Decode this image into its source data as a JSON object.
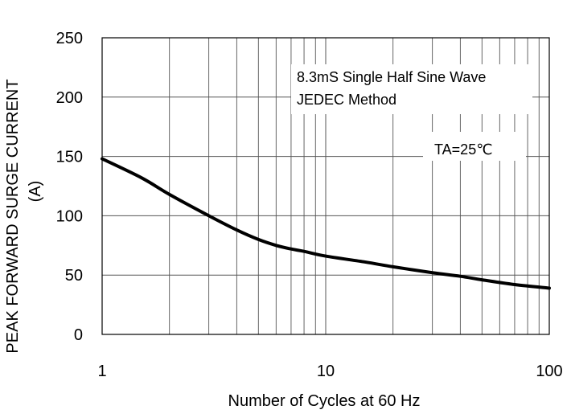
{
  "chart_data": {
    "type": "line",
    "xscale": "log",
    "xlim": [
      1,
      100
    ],
    "ylim": [
      0,
      250
    ],
    "xticks": [
      "1",
      "10",
      "100"
    ],
    "yticks": [
      "0",
      "50",
      "100",
      "150",
      "200",
      "250"
    ],
    "xlabel": "Number of Cycles at 60 Hz",
    "ylabel": [
      "PEAK FORWARD SURGE CURRENT",
      "(A)"
    ],
    "grid": true,
    "annotations": [
      "8.3mS Single Half Sine Wave",
      "JEDEC Method",
      "TA=25℃"
    ],
    "series": [
      {
        "color": "#000000",
        "x": [
          1,
          1.5,
          2,
          3,
          4,
          5,
          6,
          7,
          8,
          10,
          15,
          20,
          30,
          40,
          50,
          70,
          100
        ],
        "y": [
          148,
          132,
          118,
          100,
          88,
          80,
          75,
          72,
          70,
          66,
          61,
          57,
          52,
          49,
          46,
          42,
          39
        ]
      }
    ]
  }
}
